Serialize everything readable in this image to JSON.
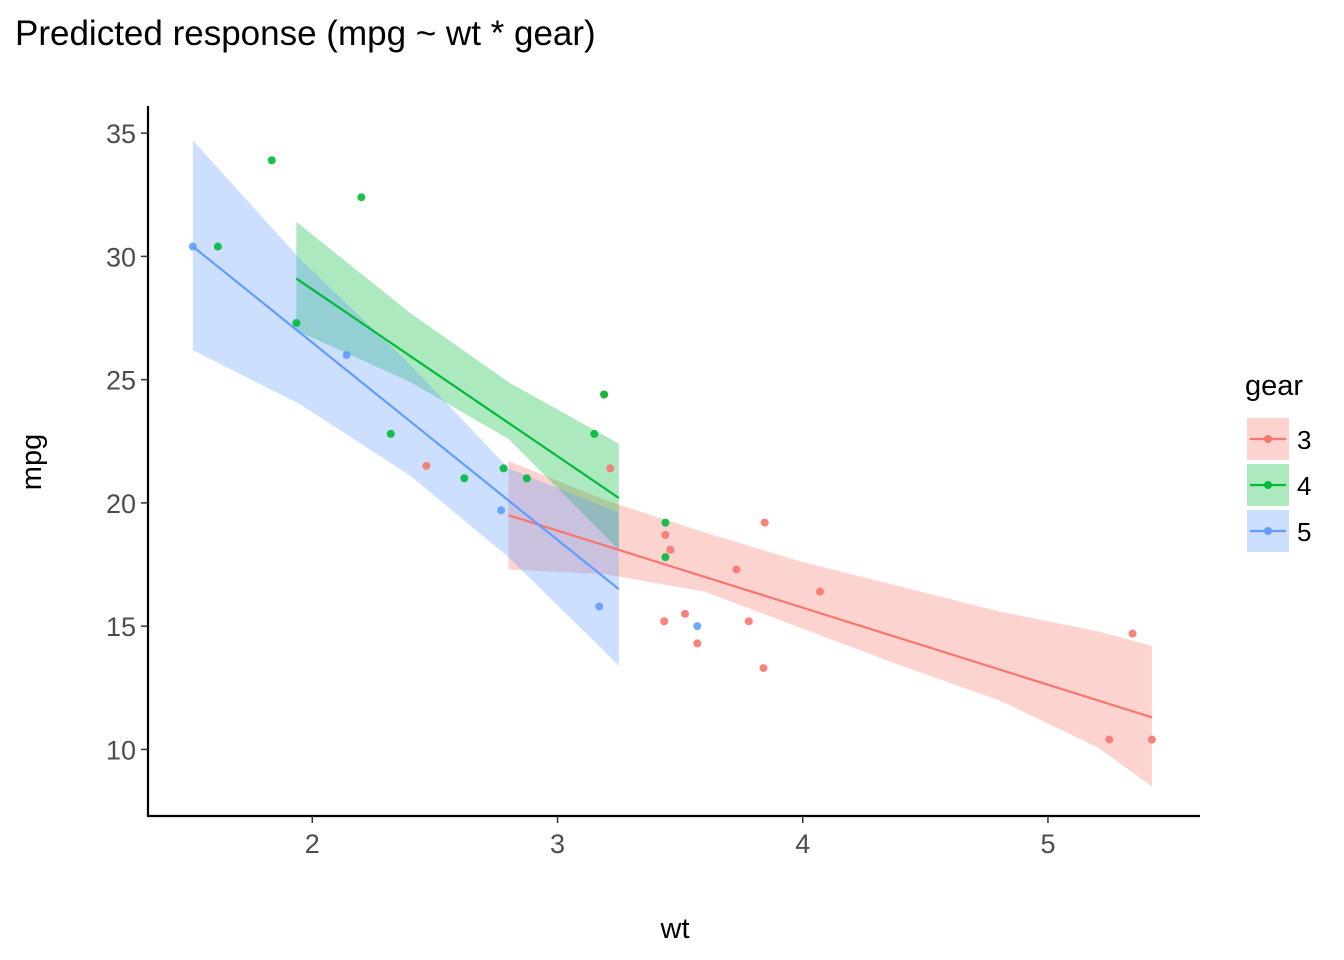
{
  "chart_data": {
    "type": "scatter",
    "title": "Predicted response (mpg ~ wt * gear)",
    "xlabel": "wt",
    "ylabel": "mpg",
    "xlim": [
      1.33,
      5.62
    ],
    "ylim": [
      7.3,
      36.1
    ],
    "x_ticks": [
      2,
      3,
      4,
      5
    ],
    "y_ticks": [
      10,
      15,
      20,
      25,
      30,
      35
    ],
    "grid": false,
    "legend": {
      "title": "gear",
      "position": "right"
    },
    "series": [
      {
        "name": "3",
        "color": "#F8766D",
        "points": [
          [
            3.215,
            21.4
          ],
          [
            3.44,
            18.7
          ],
          [
            3.46,
            18.1
          ],
          [
            3.57,
            14.3
          ],
          [
            3.19,
            24.4
          ],
          [
            3.78,
            15.2
          ],
          [
            3.73,
            17.3
          ],
          [
            3.84,
            13.3
          ],
          [
            3.845,
            19.2
          ],
          [
            4.07,
            16.4
          ],
          [
            5.25,
            10.4
          ],
          [
            5.424,
            10.4
          ],
          [
            5.345,
            14.7
          ],
          [
            2.465,
            21.5
          ],
          [
            3.52,
            15.5
          ],
          [
            3.435,
            15.2
          ]
        ],
        "fit": [
          [
            2.8,
            19.5
          ],
          [
            5.424,
            11.3
          ]
        ],
        "ribbon": [
          [
            2.8,
            17.3,
            21.7
          ],
          [
            3.2,
            17.1,
            20.1
          ],
          [
            3.6,
            16.4,
            18.8
          ],
          [
            4.0,
            14.9,
            17.6
          ],
          [
            4.4,
            13.4,
            16.6
          ],
          [
            4.8,
            12.0,
            15.6
          ],
          [
            5.2,
            10.1,
            14.8
          ],
          [
            5.424,
            8.5,
            14.2
          ]
        ]
      },
      {
        "name": "4",
        "color": "#00BA38",
        "points": [
          [
            2.62,
            21.0
          ],
          [
            2.875,
            21.0
          ],
          [
            2.32,
            22.8
          ],
          [
            3.19,
            24.4
          ],
          [
            3.15,
            22.8
          ],
          [
            3.44,
            19.2
          ],
          [
            3.44,
            17.8
          ],
          [
            2.2,
            32.4
          ],
          [
            1.615,
            30.4
          ],
          [
            1.835,
            33.9
          ],
          [
            1.935,
            27.3
          ],
          [
            2.78,
            21.4
          ]
        ],
        "fit": [
          [
            1.935,
            29.1
          ],
          [
            3.25,
            20.2
          ]
        ],
        "ribbon": [
          [
            1.935,
            27.0,
            31.4
          ],
          [
            2.4,
            24.9,
            27.7
          ],
          [
            2.8,
            22.6,
            24.9
          ],
          [
            3.25,
            18.1,
            22.4
          ]
        ]
      },
      {
        "name": "5",
        "color": "#619CFF",
        "points": [
          [
            2.14,
            26.0
          ],
          [
            1.513,
            30.4
          ],
          [
            3.17,
            15.8
          ],
          [
            2.77,
            19.7
          ],
          [
            3.57,
            15.0
          ]
        ],
        "fit": [
          [
            1.513,
            30.4
          ],
          [
            3.25,
            16.5
          ]
        ],
        "ribbon": [
          [
            1.513,
            26.2,
            34.7
          ],
          [
            1.95,
            24.0,
            29.9
          ],
          [
            2.4,
            21.1,
            25.6
          ],
          [
            2.8,
            17.8,
            21.4
          ],
          [
            3.25,
            13.4,
            19.6
          ]
        ]
      }
    ]
  }
}
